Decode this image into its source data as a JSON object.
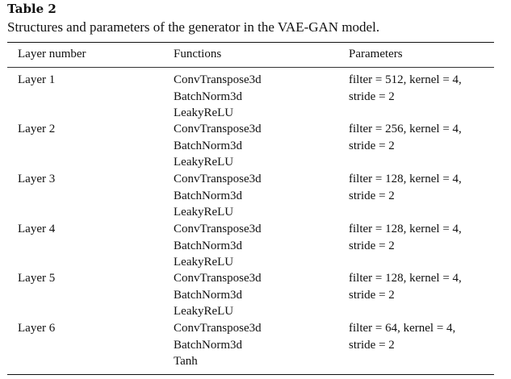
{
  "table": {
    "label": "Table 2",
    "caption": "Structures and parameters of the generator in the VAE-GAN model.",
    "headers": [
      "Layer number",
      "Functions",
      "Parameters"
    ],
    "rows": [
      {
        "layer": "Layer 1",
        "functions": [
          "ConvTranspose3d",
          "BatchNorm3d",
          "LeakyReLU"
        ],
        "parameters": [
          "filter = 512, kernel = 4,",
          "stride = 2"
        ]
      },
      {
        "layer": "Layer 2",
        "functions": [
          "ConvTranspose3d",
          "BatchNorm3d",
          "LeakyReLU"
        ],
        "parameters": [
          "filter = 256, kernel = 4,",
          "stride = 2"
        ]
      },
      {
        "layer": "Layer 3",
        "functions": [
          "ConvTranspose3d",
          "BatchNorm3d",
          "LeakyReLU"
        ],
        "parameters": [
          "filter = 128, kernel = 4,",
          "stride = 2"
        ]
      },
      {
        "layer": "Layer 4",
        "functions": [
          "ConvTranspose3d",
          "BatchNorm3d",
          "LeakyReLU"
        ],
        "parameters": [
          "filter = 128, kernel = 4,",
          "stride = 2"
        ]
      },
      {
        "layer": "Layer 5",
        "functions": [
          "ConvTranspose3d",
          "BatchNorm3d",
          "LeakyReLU"
        ],
        "parameters": [
          "filter = 128, kernel = 4,",
          "stride = 2"
        ]
      },
      {
        "layer": "Layer 6",
        "functions": [
          "ConvTranspose3d",
          "BatchNorm3d",
          "Tanh"
        ],
        "parameters": [
          "filter = 64, kernel = 4,",
          "stride = 2"
        ]
      }
    ]
  }
}
